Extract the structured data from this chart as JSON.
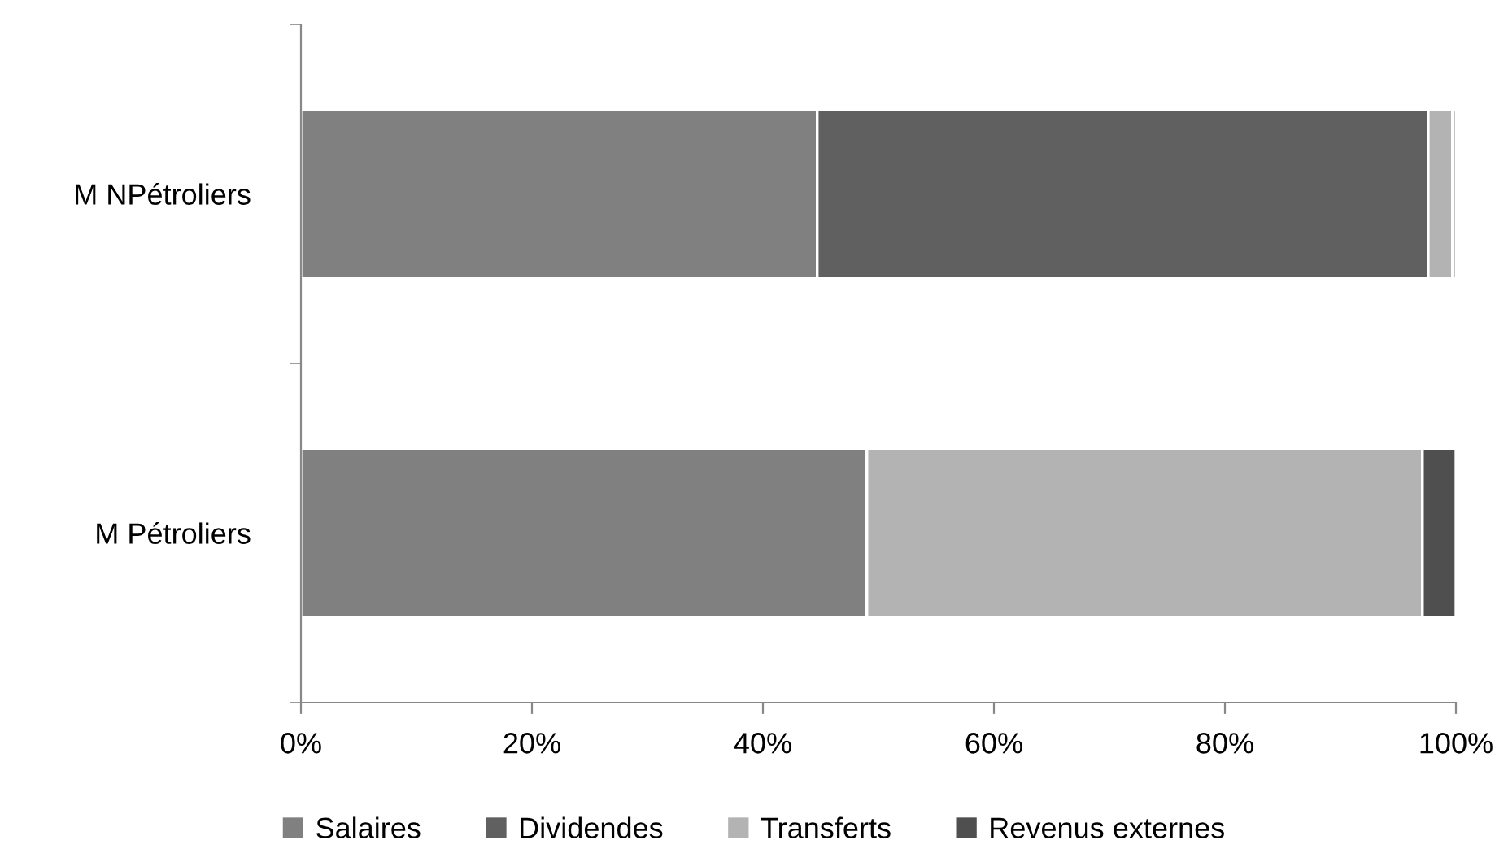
{
  "chart_data": {
    "type": "bar",
    "orientation": "horizontal",
    "stacked": true,
    "categories": [
      "M NPétroliers",
      "M Pétroliers"
    ],
    "series": [
      {
        "name": "Salaires",
        "color": "#808080",
        "values": [
          44.7,
          49.0
        ]
      },
      {
        "name": "Dividendes",
        "color": "#606060",
        "values": [
          52.9,
          0
        ]
      },
      {
        "name": "Transferts",
        "color": "#b3b3b3",
        "values": [
          2.1,
          48.1
        ]
      },
      {
        "name": "Revenus externes",
        "color": "#4f4f4f",
        "values": [
          0.3,
          2.9
        ]
      }
    ],
    "xlim": [
      0,
      100
    ],
    "xticks": [
      {
        "value": 0,
        "label": "0%"
      },
      {
        "value": 20,
        "label": "20%"
      },
      {
        "value": 40,
        "label": "40%"
      },
      {
        "value": 60,
        "label": "60%"
      },
      {
        "value": 80,
        "label": "80%"
      },
      {
        "value": 100,
        "label": "100%"
      }
    ],
    "grid": false,
    "legend": "bottom"
  }
}
